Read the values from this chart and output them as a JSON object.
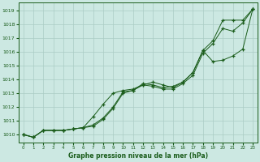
{
  "x": [
    0,
    1,
    2,
    3,
    4,
    5,
    6,
    7,
    8,
    9,
    10,
    11,
    12,
    13,
    14,
    15,
    16,
    17,
    18,
    19,
    20,
    21,
    22,
    23
  ],
  "line1": [
    1010.0,
    1009.8,
    1010.3,
    1010.3,
    1010.3,
    1010.4,
    1010.5,
    1010.6,
    1011.1,
    1011.9,
    1013.0,
    1013.2,
    1013.6,
    1013.8,
    1013.6,
    1013.4,
    1013.8,
    1014.5,
    1016.1,
    1016.8,
    1018.3,
    1018.3,
    1018.3,
    1019.1
  ],
  "line2": [
    1010.0,
    1009.8,
    1010.3,
    1010.3,
    1010.3,
    1010.4,
    1010.5,
    1010.7,
    1011.2,
    1012.0,
    1013.1,
    1013.2,
    1013.7,
    1013.6,
    1013.4,
    1013.5,
    1013.8,
    1014.5,
    1016.1,
    1015.3,
    1015.4,
    1015.7,
    1016.2,
    1019.1
  ],
  "line3": [
    1010.0,
    1009.8,
    1010.3,
    1010.3,
    1010.3,
    1010.4,
    1010.5,
    1011.3,
    1012.2,
    1013.0,
    1013.2,
    1013.3,
    1013.6,
    1013.5,
    1013.3,
    1013.3,
    1013.7,
    1014.3,
    1015.9,
    1016.6,
    1017.7,
    1017.5,
    1018.1,
    1019.1
  ],
  "bg_color": "#cce8e2",
  "line_color": "#1a5c1a",
  "marker": "+",
  "grid_color": "#aaccC4",
  "ylabel_ticks": [
    1010,
    1011,
    1012,
    1013,
    1014,
    1015,
    1016,
    1017,
    1018,
    1019
  ],
  "xlabel": "Graphe pression niveau de la mer (hPa)",
  "ylim": [
    1009.4,
    1019.6
  ],
  "xlim": [
    -0.5,
    23.5
  ],
  "figsize": [
    3.2,
    2.0
  ],
  "dpi": 100
}
